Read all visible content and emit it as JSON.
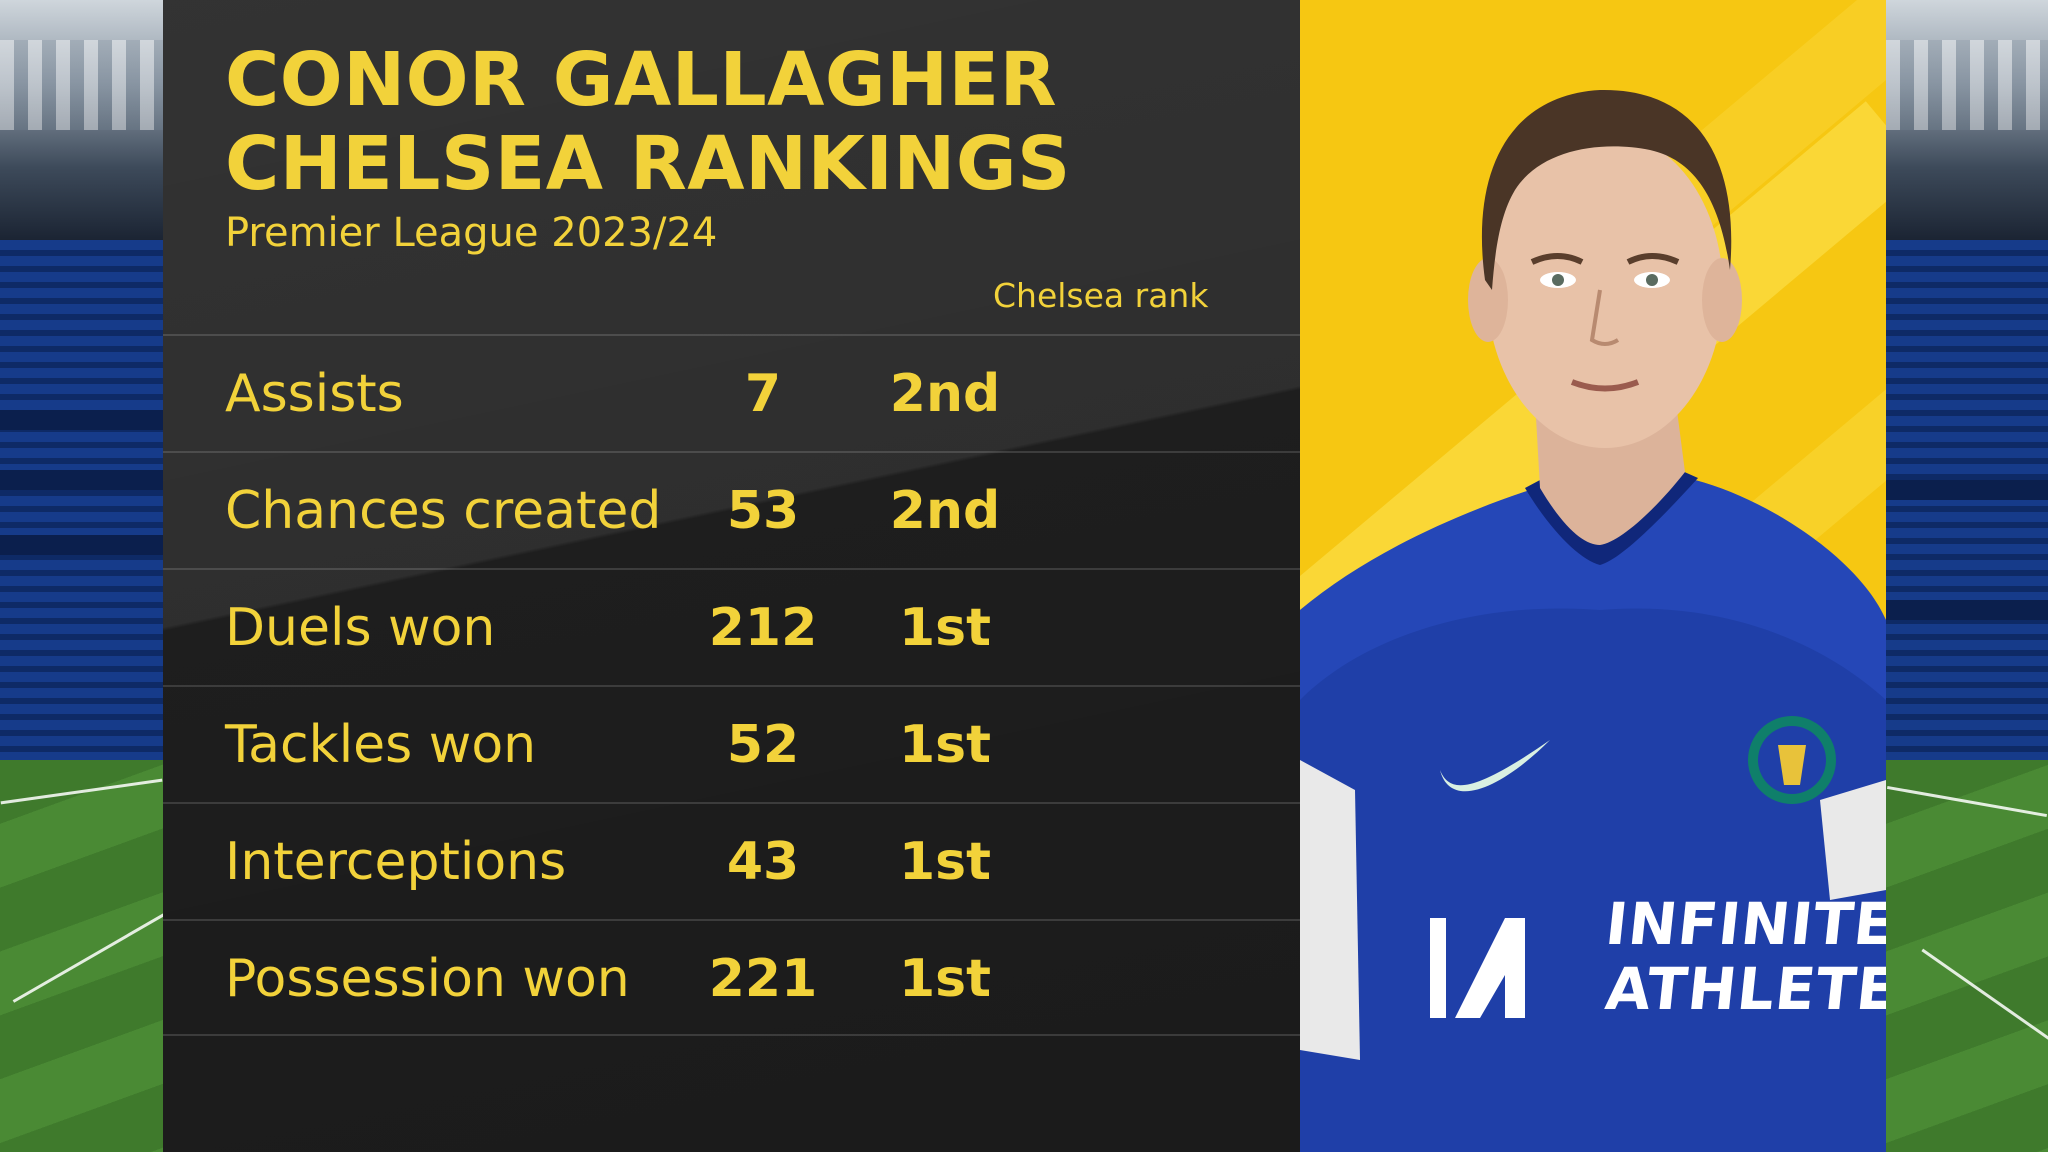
{
  "graphic": {
    "title_line1": "CONOR GALLAGHER",
    "title_line2": "CHELSEA RANKINGS",
    "subtitle": "Premier League 2023/24",
    "rank_header": "Chelsea rank"
  },
  "stats": [
    {
      "label": "Assists",
      "value": "7",
      "rank": "2nd"
    },
    {
      "label": "Chances created",
      "value": "53",
      "rank": "2nd"
    },
    {
      "label": "Duels won",
      "value": "212",
      "rank": "1st"
    },
    {
      "label": "Tackles won",
      "value": "52",
      "rank": "1st"
    },
    {
      "label": "Interceptions",
      "value": "43",
      "rank": "1st"
    },
    {
      "label": "Possession won",
      "value": "221",
      "rank": "1st"
    }
  ],
  "shirt": {
    "sponsor_line1": "INFINITE",
    "sponsor_line2": "ATHLETE"
  },
  "colors": {
    "accent_yellow": "#f2d23a",
    "panel": "#262626",
    "photo_background": "#f6c712",
    "shirt_blue": "#1f3fa8"
  }
}
